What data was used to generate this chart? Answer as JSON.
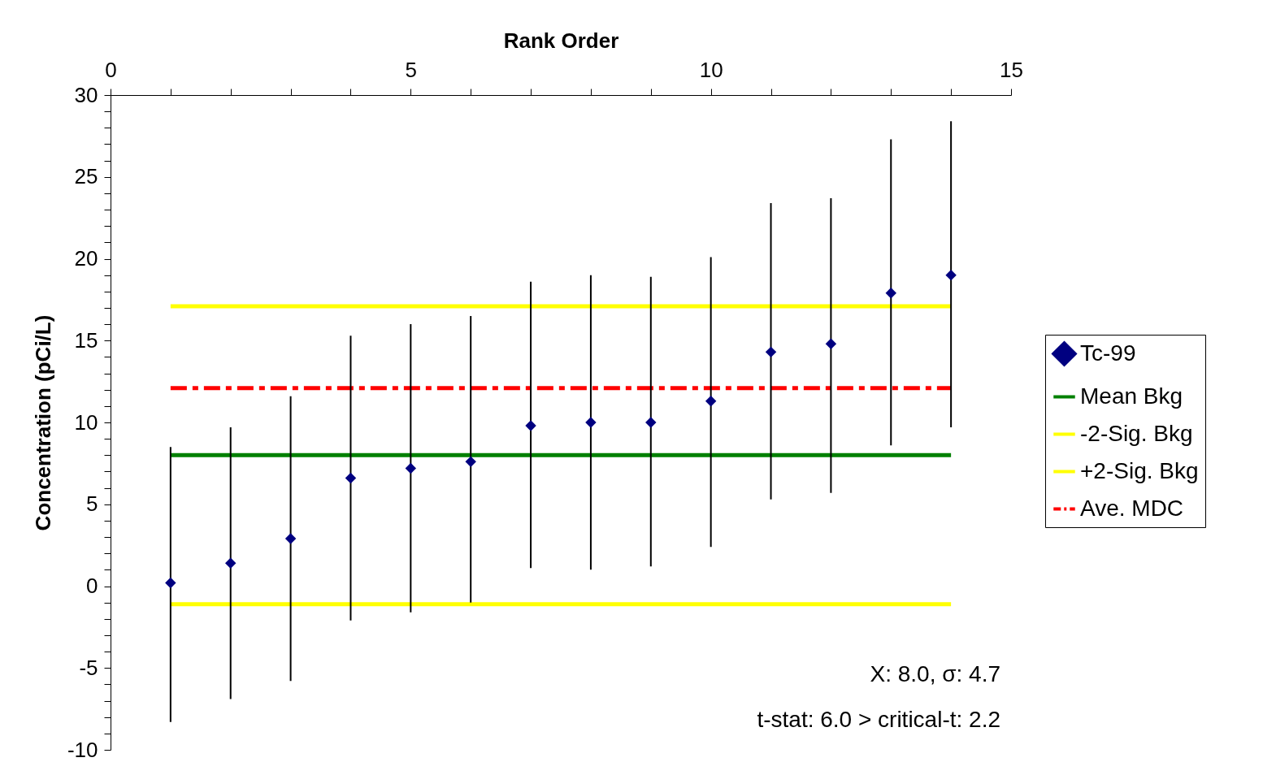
{
  "chart_data": {
    "type": "scatter",
    "xlabel": "Rank Order",
    "ylabel": "Concentration (pCi/L)",
    "xlim": [
      0,
      15
    ],
    "xticks": [
      0,
      {
        "value": 1,
        "label": null
      },
      {
        "value": 2,
        "label": null
      },
      {
        "value": 3,
        "label": null
      },
      {
        "value": 4,
        "label": null
      },
      5,
      {
        "value": 6,
        "label": null
      },
      {
        "value": 7,
        "label": null
      },
      {
        "value": 8,
        "label": null
      },
      {
        "value": 9,
        "label": null
      },
      10,
      {
        "value": 11,
        "label": null
      },
      {
        "value": 12,
        "label": null
      },
      {
        "value": 13,
        "label": null
      },
      {
        "value": 14,
        "label": null
      },
      15
    ],
    "ylim": [
      -10,
      30
    ],
    "yticks": [
      -10,
      {
        "value": -9,
        "label": null
      },
      {
        "value": -8,
        "label": null
      },
      {
        "value": -7,
        "label": null
      },
      {
        "value": -6,
        "label": null
      },
      -5,
      {
        "value": -4,
        "label": null
      },
      {
        "value": -3,
        "label": null
      },
      {
        "value": -2,
        "label": null
      },
      {
        "value": -1,
        "label": null
      },
      0,
      {
        "value": 1,
        "label": null
      },
      {
        "value": 2,
        "label": null
      },
      {
        "value": 3,
        "label": null
      },
      {
        "value": 4,
        "label": null
      },
      5,
      {
        "value": 6,
        "label": null
      },
      {
        "value": 7,
        "label": null
      },
      {
        "value": 8,
        "label": null
      },
      {
        "value": 9,
        "label": null
      },
      10,
      {
        "value": 11,
        "label": null
      },
      {
        "value": 12,
        "label": null
      },
      {
        "value": 13,
        "label": null
      },
      {
        "value": 14,
        "label": null
      },
      15,
      {
        "value": 16,
        "label": null
      },
      {
        "value": 17,
        "label": null
      },
      {
        "value": 18,
        "label": null
      },
      {
        "value": 19,
        "label": null
      },
      20,
      {
        "value": 21,
        "label": null
      },
      {
        "value": 22,
        "label": null
      },
      {
        "value": 23,
        "label": null
      },
      {
        "value": 24,
        "label": null
      },
      25,
      {
        "value": 26,
        "label": null
      },
      {
        "value": 27,
        "label": null
      },
      {
        "value": 28,
        "label": null
      },
      {
        "value": 29,
        "label": null
      },
      30
    ],
    "grid": false,
    "legend": "right",
    "series": [
      {
        "name": "Tc-99",
        "type": "scatter",
        "marker": "diamond",
        "color": "#000080",
        "x": [
          1,
          2,
          3,
          4,
          5,
          6,
          7,
          8,
          9,
          10,
          11,
          12,
          13,
          14
        ],
        "values": [
          0.2,
          1.4,
          2.9,
          6.6,
          7.2,
          7.6,
          9.8,
          10.0,
          10.0,
          11.3,
          14.3,
          14.8,
          17.9,
          19.0
        ],
        "errors": [
          [
            -8.3,
            8.5
          ],
          [
            -6.9,
            9.7
          ],
          [
            -5.8,
            11.6
          ],
          [
            -2.1,
            15.3
          ],
          [
            -1.6,
            16.0
          ],
          [
            -1.0,
            16.5
          ],
          [
            1.1,
            18.6
          ],
          [
            1.0,
            19.0
          ],
          [
            1.2,
            18.9
          ],
          [
            2.4,
            20.1
          ],
          [
            5.3,
            23.4
          ],
          [
            5.7,
            23.7
          ],
          [
            8.6,
            27.3
          ],
          [
            9.7,
            28.4
          ]
        ]
      },
      {
        "name": "Mean Bkg",
        "type": "line",
        "line_style": "solid",
        "color": "#008000",
        "x": [
          1,
          14
        ],
        "values": [
          8.0,
          8.0
        ]
      },
      {
        "name": "-2-Sig. Bkg",
        "type": "line",
        "line_style": "solid",
        "color": "#ffff00",
        "x": [
          1,
          14
        ],
        "values": [
          -1.1,
          -1.1
        ]
      },
      {
        "name": "+2-Sig. Bkg",
        "type": "line",
        "line_style": "solid",
        "color": "#ffff00",
        "x": [
          1,
          14
        ],
        "values": [
          17.1,
          17.1
        ]
      },
      {
        "name": "Ave. MDC",
        "type": "line",
        "line_style": "dashed",
        "color": "#ff0000",
        "x": [
          1,
          14
        ],
        "values": [
          12.1,
          12.1
        ]
      }
    ],
    "annotations": [
      "X: 8.0,  σ: 4.7",
      "t-stat: 6.0 > critical-t: 2.2"
    ]
  }
}
